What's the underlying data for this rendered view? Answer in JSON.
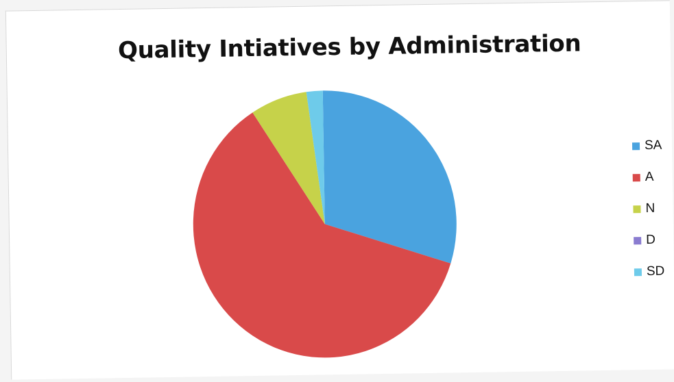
{
  "chart_data": {
    "type": "pie",
    "title": "Quality Intiatives by Administration",
    "legend_position": "right",
    "start_angle_deg": 0,
    "direction": "clockwise",
    "slices": [
      {
        "label": "SA",
        "value": 30,
        "color": "#4aa3df"
      },
      {
        "label": "A",
        "value": 61,
        "color": "#d94a4a"
      },
      {
        "label": "N",
        "value": 7,
        "color": "#c6d24a"
      },
      {
        "label": "D",
        "value": 0,
        "color": "#8a7cd0"
      },
      {
        "label": "SD",
        "value": 2,
        "color": "#6ecbea"
      }
    ]
  }
}
